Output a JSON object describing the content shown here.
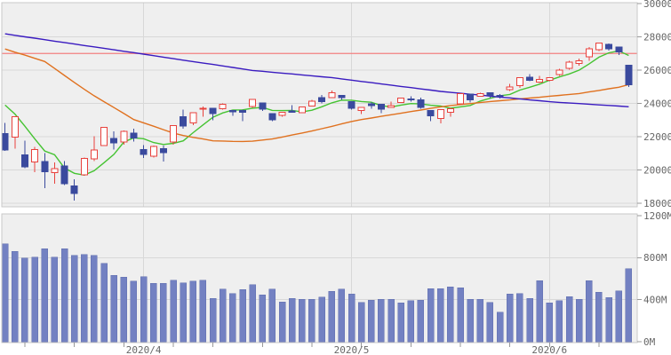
{
  "chart_data": {
    "type": "candlestick_with_volume",
    "price_axis": {
      "min": 18000,
      "max": 30000,
      "tick_step": 2000,
      "tick_labels": [
        "30000",
        "28000",
        "26000",
        "24000",
        "22000",
        "20000",
        "18000"
      ]
    },
    "volume_axis": {
      "min": 0,
      "max": 1200,
      "unit": "M",
      "tick_labels": [
        "1200M",
        "800M",
        "400M",
        "0M"
      ],
      "tick_values": [
        1200,
        800,
        400,
        0
      ],
      "gridline_values": [
        800,
        400
      ]
    },
    "x_month_labels": [
      {
        "index": 14,
        "label": "2020/4"
      },
      {
        "index": 35,
        "label": "2020/5"
      },
      {
        "index": 55,
        "label": "2020/6"
      }
    ],
    "week_tick_indices": [
      2,
      7,
      12,
      17,
      21,
      26,
      31,
      36,
      41,
      46,
      51,
      55,
      60
    ],
    "reference_line": {
      "value": 27000
    },
    "candles": {
      "open": [
        22180,
        21970,
        20920,
        20490,
        20500,
        19830,
        20250,
        19030,
        19720,
        20680,
        21470,
        21900,
        21680,
        22210,
        21230,
        20820,
        21290,
        21690,
        23200,
        22820,
        23690,
        23700,
        23690,
        23580,
        23570,
        23820,
        24030,
        23400,
        23290,
        23540,
        23450,
        23840,
        24360,
        24340,
        24480,
        24120,
        23580,
        23980,
        23940,
        23770,
        24060,
        24280,
        24220,
        23580,
        23100,
        23470,
        23980,
        24570,
        24420,
        24640,
        24480,
        24830,
        25080,
        25580,
        25290,
        25400,
        25740,
        26100,
        26410,
        26790,
        27230,
        27550,
        27380,
        26300
      ],
      "high": [
        22840,
        23190,
        21770,
        21380,
        21020,
        20450,
        20530,
        19430,
        20740,
        22020,
        22600,
        22330,
        22380,
        22480,
        21490,
        21480,
        21460,
        22680,
        23620,
        23450,
        23820,
        23700,
        24010,
        23580,
        23630,
        24270,
        24030,
        23400,
        23500,
        23890,
        23790,
        24210,
        24510,
        24770,
        24480,
        24120,
        23760,
        24090,
        23940,
        24110,
        24330,
        24430,
        24350,
        23580,
        23630,
        23730,
        24600,
        24570,
        24640,
        24640,
        24560,
        25180,
        25550,
        25760,
        25660,
        25580,
        26080,
        26550,
        26690,
        27380,
        27660,
        27590,
        27420,
        26320
      ],
      "low": [
        21150,
        21290,
        20120,
        19880,
        18920,
        19170,
        19090,
        18150,
        19650,
        20540,
        21430,
        21240,
        21520,
        21720,
        20730,
        20740,
        20520,
        21520,
        22480,
        22700,
        23210,
        22990,
        23620,
        23250,
        22930,
        23740,
        23560,
        22940,
        23200,
        23440,
        23450,
        23840,
        24000,
        24340,
        24210,
        23640,
        23360,
        23680,
        23410,
        23770,
        24060,
        24100,
        23680,
        22940,
        22790,
        23200,
        23980,
        24050,
        24420,
        24330,
        24300,
        24750,
        24940,
        25330,
        25240,
        25340,
        25660,
        26030,
        26260,
        26560,
        27160,
        27180,
        26920,
        25000
      ],
      "close": [
        21200,
        23190,
        20190,
        21240,
        19900,
        20090,
        19170,
        18590,
        20700,
        21200,
        22550,
        21640,
        22330,
        21920,
        20940,
        21410,
        21050,
        22680,
        22650,
        23430,
        23720,
        23390,
        23950,
        23500,
        23480,
        24240,
        23650,
        23020,
        23480,
        23500,
        23780,
        24130,
        24100,
        24630,
        24350,
        23720,
        23750,
        23880,
        23660,
        23880,
        24330,
        24220,
        23760,
        23250,
        23630,
        23690,
        24600,
        24210,
        24580,
        24470,
        24420,
        25000,
        25550,
        25400,
        25440,
        25560,
        25990,
        26480,
        26550,
        27270,
        27630,
        27270,
        27090,
        25130
      ]
    },
    "volume_millions": [
      930,
      860,
      795,
      805,
      885,
      805,
      885,
      820,
      830,
      820,
      745,
      630,
      615,
      575,
      620,
      555,
      555,
      585,
      560,
      575,
      585,
      410,
      500,
      460,
      495,
      545,
      445,
      500,
      380,
      410,
      405,
      405,
      425,
      480,
      500,
      455,
      375,
      395,
      405,
      405,
      370,
      390,
      395,
      505,
      505,
      520,
      515,
      405,
      405,
      375,
      280,
      455,
      460,
      410,
      580,
      370,
      390,
      430,
      405,
      580,
      470,
      420,
      485,
      695
    ],
    "moving_averages": [
      {
        "name": "ma-short-green",
        "values": [
          23900,
          23360,
          22630,
          21870,
          21140,
          20920,
          20120,
          19800,
          19690,
          19950,
          20440,
          20940,
          21680,
          21930,
          21880,
          21650,
          21530,
          21600,
          21750,
          22240,
          22710,
          23170,
          23430,
          23600,
          23610,
          23710,
          23760,
          23580,
          23570,
          23580,
          23490,
          23590,
          23800,
          24030,
          24200,
          24190,
          24110,
          24070,
          23870,
          23780,
          23900,
          23990,
          23970,
          23890,
          23840,
          23710,
          23790,
          23880,
          24140,
          24310,
          24460,
          24540,
          24800,
          24970,
          25160,
          25390,
          25590,
          25770,
          26000,
          26370,
          26780,
          27040,
          27160,
          26880
        ]
      },
      {
        "name": "ma-mid-orange",
        "values": [
          27270,
          27080,
          26900,
          26710,
          26520,
          26100,
          25680,
          25260,
          24850,
          24460,
          24100,
          23750,
          23390,
          23030,
          22830,
          22630,
          22420,
          22220,
          22070,
          21960,
          21860,
          21750,
          21740,
          21720,
          21710,
          21730,
          21800,
          21860,
          21980,
          22100,
          22220,
          22340,
          22480,
          22620,
          22770,
          22910,
          23030,
          23120,
          23220,
          23320,
          23410,
          23510,
          23600,
          23700,
          23790,
          23870,
          23930,
          23990,
          24050,
          24110,
          24160,
          24210,
          24270,
          24320,
          24370,
          24430,
          24480,
          24540,
          24590,
          24690,
          24780,
          24880,
          24970,
          25130
        ]
      },
      {
        "name": "ma-long-purple",
        "values": [
          28180,
          28090,
          28000,
          27920,
          27830,
          27740,
          27660,
          27570,
          27480,
          27400,
          27310,
          27220,
          27130,
          27050,
          26960,
          26870,
          26780,
          26690,
          26600,
          26510,
          26420,
          26340,
          26250,
          26160,
          26070,
          25980,
          25930,
          25870,
          25820,
          25770,
          25710,
          25660,
          25600,
          25550,
          25470,
          25400,
          25320,
          25250,
          25170,
          25100,
          25020,
          24950,
          24870,
          24800,
          24720,
          24660,
          24610,
          24550,
          24500,
          24440,
          24380,
          24330,
          24270,
          24210,
          24160,
          24100,
          24060,
          24020,
          23990,
          23950,
          23910,
          23880,
          23840,
          23800
        ]
      }
    ],
    "colors": {
      "up_candle_border": "#e8413c",
      "up_candle_fill": "#ffffff",
      "down_candle": "#3a4a9e",
      "ma_short": "#45c332",
      "ma_mid": "#e0711f",
      "ma_long": "#3a1bc0",
      "reference_line": "#f28080",
      "volume_bar": "#7381c2",
      "volume_bar_border": "#626fae",
      "plot_bg": "#efefef",
      "grid": "#d8d8d8",
      "panel_border": "#c9c9c9",
      "tick": "#999999",
      "axis_text": "#666666"
    },
    "legend": "none",
    "grid": "on"
  }
}
